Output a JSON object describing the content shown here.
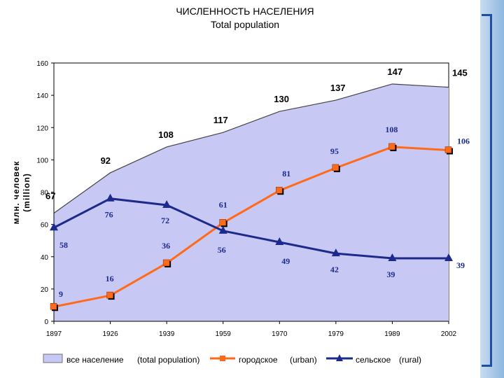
{
  "title": "ЧИСЛЕННОСТЬ НАСЕЛЕНИЯ",
  "subtitle": "Total population",
  "colors": {
    "area": "#c8c8f4",
    "urban": "#ff6a1a",
    "rural": "#1c2a8c",
    "plot_bg": "#ffffff"
  },
  "chart_data": {
    "type": "line",
    "title": "ЧИСЛЕННОСТЬ НАСЕЛЕНИЯ",
    "subtitle": "Total population",
    "categories": [
      "1897",
      "1926",
      "1939",
      "1959",
      "1970",
      "1979",
      "1989",
      "2002"
    ],
    "ylabel": "млн. человек (million)",
    "ylim": [
      0,
      160
    ],
    "yticks": [
      "0",
      "20",
      "40",
      "60",
      "80",
      "100",
      "120",
      "140",
      "160"
    ],
    "grid": false,
    "legend_position": "bottom",
    "series": [
      {
        "name": "все население",
        "name2": "(total population)",
        "type": "area",
        "values": [
          67,
          92,
          108,
          117,
          130,
          137,
          147,
          145
        ]
      },
      {
        "name": "городское",
        "name2": "(urban)",
        "type": "line",
        "marker": "square",
        "values": [
          9,
          16,
          36,
          61,
          81,
          95,
          108,
          106
        ]
      },
      {
        "name": "сельское",
        "name2": "(rural)",
        "type": "line",
        "marker": "triangle",
        "values": [
          58,
          76,
          72,
          56,
          49,
          42,
          39,
          39
        ]
      }
    ]
  }
}
